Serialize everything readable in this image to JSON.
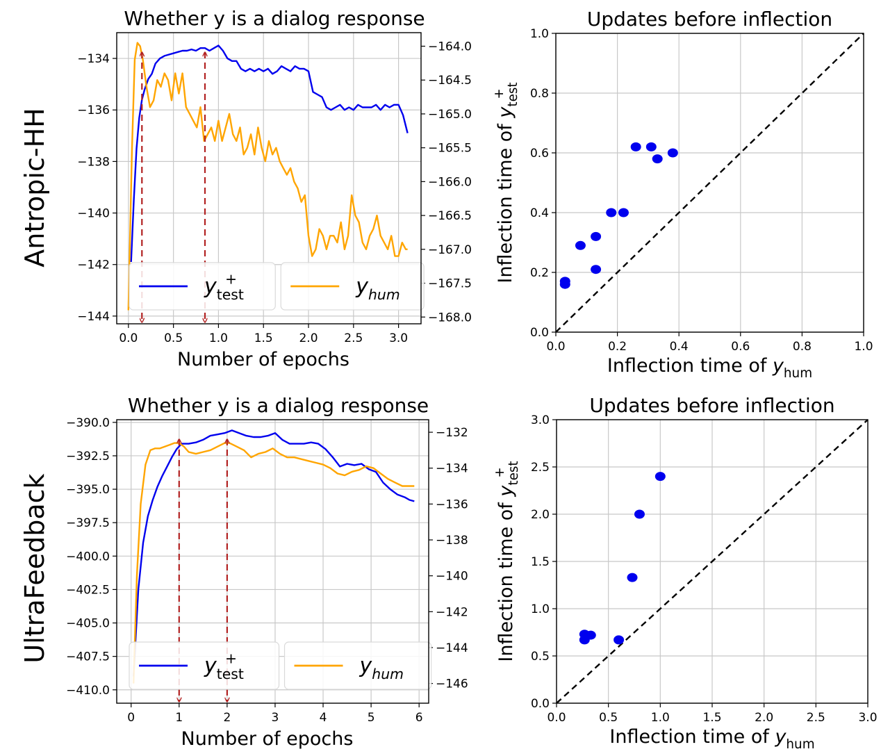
{
  "row_labels": [
    "Antropic-HH",
    "UltraFeedback"
  ],
  "chart_data": [
    {
      "type": "line",
      "title": "Whether y is a dialog response",
      "xlabel": "Number of epochs",
      "ylabel": "",
      "xlim": [
        -0.13,
        3.25
      ],
      "ylim_left": [
        -144.3,
        -133.0
      ],
      "ylim_right": [
        -168.1,
        -163.8
      ],
      "xticks": [
        0.0,
        0.5,
        1.0,
        1.5,
        2.0,
        2.5,
        3.0
      ],
      "xtick_labels": [
        "0.0",
        "0.5",
        "1.0",
        "1.5",
        "2.0",
        "2.5",
        "3.0"
      ],
      "yticks_left": [
        -144,
        -142,
        -140,
        -138,
        -136,
        -134
      ],
      "ytick_labels_left": [
        "−144",
        "−142",
        "−140",
        "−138",
        "−136",
        "−134"
      ],
      "yticks_right": [
        -168.0,
        -167.5,
        -167.0,
        -166.5,
        -166.0,
        -165.5,
        -165.0,
        -164.5,
        -164.0
      ],
      "ytick_labels_right": [
        "−168.0",
        "−167.5",
        "−167.0",
        "−166.5",
        "−166.0",
        "−165.5",
        "−165.0",
        "−164.5",
        "−164.0"
      ],
      "grid": true,
      "legend": {
        "position": "bottom",
        "entries": [
          "y_test+",
          "y_hum"
        ]
      },
      "series": [
        {
          "name": "y_test+",
          "axis": "left",
          "color": "#0000ee",
          "x": [
            0.03,
            0.06,
            0.09,
            0.12,
            0.15,
            0.18,
            0.22,
            0.26,
            0.3,
            0.35,
            0.4,
            0.45,
            0.5,
            0.55,
            0.6,
            0.65,
            0.7,
            0.75,
            0.8,
            0.85,
            0.9,
            0.95,
            1.0,
            1.05,
            1.1,
            1.15,
            1.2,
            1.25,
            1.3,
            1.35,
            1.4,
            1.45,
            1.5,
            1.55,
            1.6,
            1.65,
            1.7,
            1.75,
            1.8,
            1.85,
            1.9,
            1.95,
            2.0,
            2.05,
            2.1,
            2.15,
            2.2,
            2.25,
            2.3,
            2.35,
            2.4,
            2.45,
            2.5,
            2.55,
            2.6,
            2.65,
            2.7,
            2.75,
            2.8,
            2.85,
            2.9,
            2.95,
            3.0,
            3.05,
            3.1
          ],
          "values": [
            -141.9,
            -139.5,
            -137.5,
            -136.3,
            -135.6,
            -135.2,
            -134.8,
            -134.6,
            -134.2,
            -134.0,
            -133.9,
            -133.85,
            -133.8,
            -133.75,
            -133.7,
            -133.7,
            -133.65,
            -133.7,
            -133.6,
            -133.6,
            -133.7,
            -133.6,
            -133.5,
            -133.7,
            -134.0,
            -134.1,
            -134.1,
            -134.4,
            -134.5,
            -134.4,
            -134.5,
            -134.4,
            -134.5,
            -134.4,
            -134.6,
            -134.5,
            -134.3,
            -134.4,
            -134.5,
            -134.3,
            -134.4,
            -134.4,
            -134.5,
            -135.3,
            -135.4,
            -135.5,
            -135.9,
            -136.0,
            -135.9,
            -135.8,
            -136.0,
            -135.9,
            -136.0,
            -135.8,
            -135.9,
            -135.9,
            -135.9,
            -135.8,
            -136.0,
            -135.8,
            -135.9,
            -135.8,
            -135.8,
            -136.2,
            -136.9
          ]
        },
        {
          "name": "y_hum",
          "axis": "right",
          "color": "#ffa500",
          "x": [
            0.0,
            0.04,
            0.07,
            0.1,
            0.13,
            0.16,
            0.2,
            0.24,
            0.28,
            0.32,
            0.36,
            0.4,
            0.44,
            0.48,
            0.52,
            0.56,
            0.6,
            0.64,
            0.68,
            0.72,
            0.76,
            0.8,
            0.84,
            0.88,
            0.92,
            0.96,
            1.0,
            1.04,
            1.08,
            1.12,
            1.16,
            1.2,
            1.24,
            1.28,
            1.32,
            1.36,
            1.4,
            1.44,
            1.48,
            1.52,
            1.56,
            1.6,
            1.64,
            1.68,
            1.72,
            1.76,
            1.8,
            1.84,
            1.88,
            1.92,
            1.96,
            2.0,
            2.04,
            2.08,
            2.12,
            2.16,
            2.2,
            2.24,
            2.28,
            2.32,
            2.36,
            2.4,
            2.44,
            2.48,
            2.52,
            2.56,
            2.6,
            2.64,
            2.68,
            2.72,
            2.76,
            2.8,
            2.84,
            2.88,
            2.92,
            2.96,
            3.0,
            3.04,
            3.08,
            3.1
          ],
          "values": [
            -167.9,
            -165.5,
            -164.2,
            -163.95,
            -164.0,
            -164.2,
            -164.6,
            -164.9,
            -164.8,
            -164.5,
            -164.6,
            -164.4,
            -164.5,
            -164.8,
            -164.4,
            -164.7,
            -164.4,
            -164.9,
            -165.0,
            -165.1,
            -165.2,
            -164.9,
            -165.4,
            -165.3,
            -165.2,
            -165.4,
            -165.1,
            -165.4,
            -165.2,
            -165.0,
            -165.3,
            -165.4,
            -165.2,
            -165.6,
            -165.5,
            -165.3,
            -165.6,
            -165.2,
            -165.5,
            -165.7,
            -165.4,
            -165.6,
            -165.5,
            -165.7,
            -165.8,
            -165.9,
            -165.8,
            -166.0,
            -166.1,
            -166.3,
            -166.2,
            -166.8,
            -167.1,
            -167.0,
            -166.7,
            -166.8,
            -167.0,
            -166.8,
            -166.8,
            -166.9,
            -166.6,
            -167.0,
            -166.8,
            -166.2,
            -166.5,
            -166.6,
            -166.9,
            -167.0,
            -166.8,
            -166.7,
            -166.5,
            -166.8,
            -166.9,
            -167.0,
            -166.8,
            -167.1,
            -167.1,
            -166.9,
            -167.0,
            -167.0
          ]
        }
      ],
      "arrows_x": [
        0.15,
        0.85
      ]
    },
    {
      "type": "scatter",
      "title": "Updates before inflection",
      "xlabel": "Inflection time of y_hum",
      "ylabel": "Inflection time of y_test+",
      "xlim": [
        0.0,
        1.0
      ],
      "ylim": [
        0.0,
        1.0
      ],
      "xticks": [
        0.0,
        0.2,
        0.4,
        0.6,
        0.8,
        1.0
      ],
      "xtick_labels": [
        "0.0",
        "0.2",
        "0.4",
        "0.6",
        "0.8",
        "1.0"
      ],
      "yticks": [
        0.0,
        0.2,
        0.4,
        0.6,
        0.8,
        1.0
      ],
      "ytick_labels": [
        "0.0",
        "0.2",
        "0.4",
        "0.6",
        "0.8",
        "1.0"
      ],
      "grid": true,
      "diagonal": true,
      "point_color": "#0000ee",
      "points": {
        "x": [
          0.03,
          0.03,
          0.08,
          0.13,
          0.13,
          0.18,
          0.22,
          0.26,
          0.31,
          0.33,
          0.38
        ],
        "y": [
          0.16,
          0.17,
          0.29,
          0.32,
          0.21,
          0.4,
          0.4,
          0.62,
          0.62,
          0.58,
          0.6
        ]
      }
    },
    {
      "type": "line",
      "title": "Whether y is a dialog response",
      "xlabel": "Number of epochs",
      "ylabel": "",
      "xlim": [
        -0.3,
        6.2
      ],
      "ylim_left": [
        -411.0,
        -389.8
      ],
      "ylim_right": [
        -147.1,
        -131.3
      ],
      "xticks": [
        0,
        1,
        2,
        3,
        4,
        5,
        6
      ],
      "xtick_labels": [
        "0",
        "1",
        "2",
        "3",
        "4",
        "5",
        "6"
      ],
      "yticks_left": [
        -410.0,
        -407.5,
        -405.0,
        -402.5,
        -400.0,
        -397.5,
        -395.0,
        -392.5,
        -390.0
      ],
      "ytick_labels_left": [
        "−410.0",
        "−407.5",
        "−405.0",
        "−402.5",
        "−400.0",
        "−397.5",
        "−395.0",
        "−392.5",
        "−390.0"
      ],
      "yticks_right": [
        -146,
        -144,
        -142,
        -140,
        -138,
        -136,
        -134,
        -132
      ],
      "ytick_labels_right": [
        "−146",
        "−144",
        "−142",
        "−140",
        "−138",
        "−136",
        "−134",
        "−132"
      ],
      "grid": true,
      "legend": {
        "position": "bottom",
        "entries": [
          "y_test+",
          "y_hum"
        ]
      },
      "series": [
        {
          "name": "y_test+",
          "axis": "left",
          "color": "#0000ee",
          "x": [
            0.05,
            0.15,
            0.25,
            0.35,
            0.45,
            0.55,
            0.65,
            0.75,
            0.85,
            0.95,
            1.05,
            1.2,
            1.35,
            1.5,
            1.65,
            1.8,
            1.95,
            2.1,
            2.25,
            2.4,
            2.55,
            2.7,
            2.85,
            3.0,
            3.15,
            3.3,
            3.45,
            3.6,
            3.75,
            3.9,
            4.05,
            4.2,
            4.35,
            4.5,
            4.65,
            4.8,
            4.95,
            5.1,
            5.25,
            5.4,
            5.55,
            5.7,
            5.8,
            5.9
          ],
          "values": [
            -409.0,
            -402.5,
            -399.0,
            -397.0,
            -395.8,
            -394.8,
            -394.0,
            -393.3,
            -392.6,
            -392.0,
            -391.6,
            -391.6,
            -391.5,
            -391.3,
            -391.0,
            -390.9,
            -390.8,
            -390.6,
            -390.8,
            -391.0,
            -391.1,
            -391.1,
            -391.0,
            -390.8,
            -391.3,
            -391.6,
            -391.6,
            -391.6,
            -391.5,
            -391.6,
            -392.0,
            -392.6,
            -393.3,
            -393.1,
            -393.2,
            -393.1,
            -393.5,
            -393.7,
            -394.5,
            -395.0,
            -395.4,
            -395.6,
            -395.8,
            -395.9
          ]
        },
        {
          "name": "y_hum",
          "axis": "right",
          "color": "#ffa500",
          "x": [
            0.05,
            0.12,
            0.2,
            0.3,
            0.4,
            0.5,
            0.6,
            0.7,
            0.8,
            0.9,
            1.0,
            1.1,
            1.2,
            1.35,
            1.5,
            1.65,
            1.8,
            1.95,
            2.05,
            2.2,
            2.35,
            2.5,
            2.65,
            2.8,
            2.95,
            3.1,
            3.25,
            3.4,
            3.55,
            3.7,
            3.85,
            4.0,
            4.15,
            4.3,
            4.45,
            4.6,
            4.75,
            4.9,
            5.05,
            5.2,
            5.35,
            5.5,
            5.65,
            5.8,
            5.9
          ],
          "values": [
            -146.0,
            -140.0,
            -136.0,
            -133.8,
            -133.0,
            -132.9,
            -132.9,
            -132.8,
            -132.7,
            -132.6,
            -132.6,
            -132.8,
            -133.1,
            -133.2,
            -133.1,
            -133.0,
            -132.8,
            -132.6,
            -132.6,
            -132.8,
            -133.0,
            -133.4,
            -133.2,
            -133.1,
            -132.9,
            -133.2,
            -133.4,
            -133.4,
            -133.5,
            -133.6,
            -133.7,
            -133.8,
            -134.0,
            -134.3,
            -134.4,
            -134.2,
            -134.1,
            -133.9,
            -134.0,
            -134.3,
            -134.6,
            -134.8,
            -135.0,
            -135.0,
            -135.0
          ]
        }
      ],
      "arrows_x": [
        1.0,
        2.0
      ]
    },
    {
      "type": "scatter",
      "title": "Updates before inflection",
      "xlabel": "Inflection time of y_hum",
      "ylabel": "Inflection time of y_test+",
      "xlim": [
        0.0,
        3.0
      ],
      "ylim": [
        0.0,
        3.0
      ],
      "xticks": [
        0.0,
        0.5,
        1.0,
        1.5,
        2.0,
        2.5,
        3.0
      ],
      "xtick_labels": [
        "0.0",
        "0.5",
        "1.0",
        "1.5",
        "2.0",
        "2.5",
        "3.0"
      ],
      "yticks": [
        0.0,
        0.5,
        1.0,
        1.5,
        2.0,
        2.5,
        3.0
      ],
      "ytick_labels": [
        "0.0",
        "0.5",
        "1.0",
        "1.5",
        "2.0",
        "2.5",
        "3.0"
      ],
      "grid": true,
      "diagonal": true,
      "point_color": "#0000ee",
      "points": {
        "x": [
          0.27,
          0.27,
          0.33,
          0.6,
          0.73,
          0.8,
          1.0
        ],
        "y": [
          0.67,
          0.73,
          0.72,
          0.67,
          1.33,
          2.0,
          2.4
        ]
      }
    }
  ]
}
